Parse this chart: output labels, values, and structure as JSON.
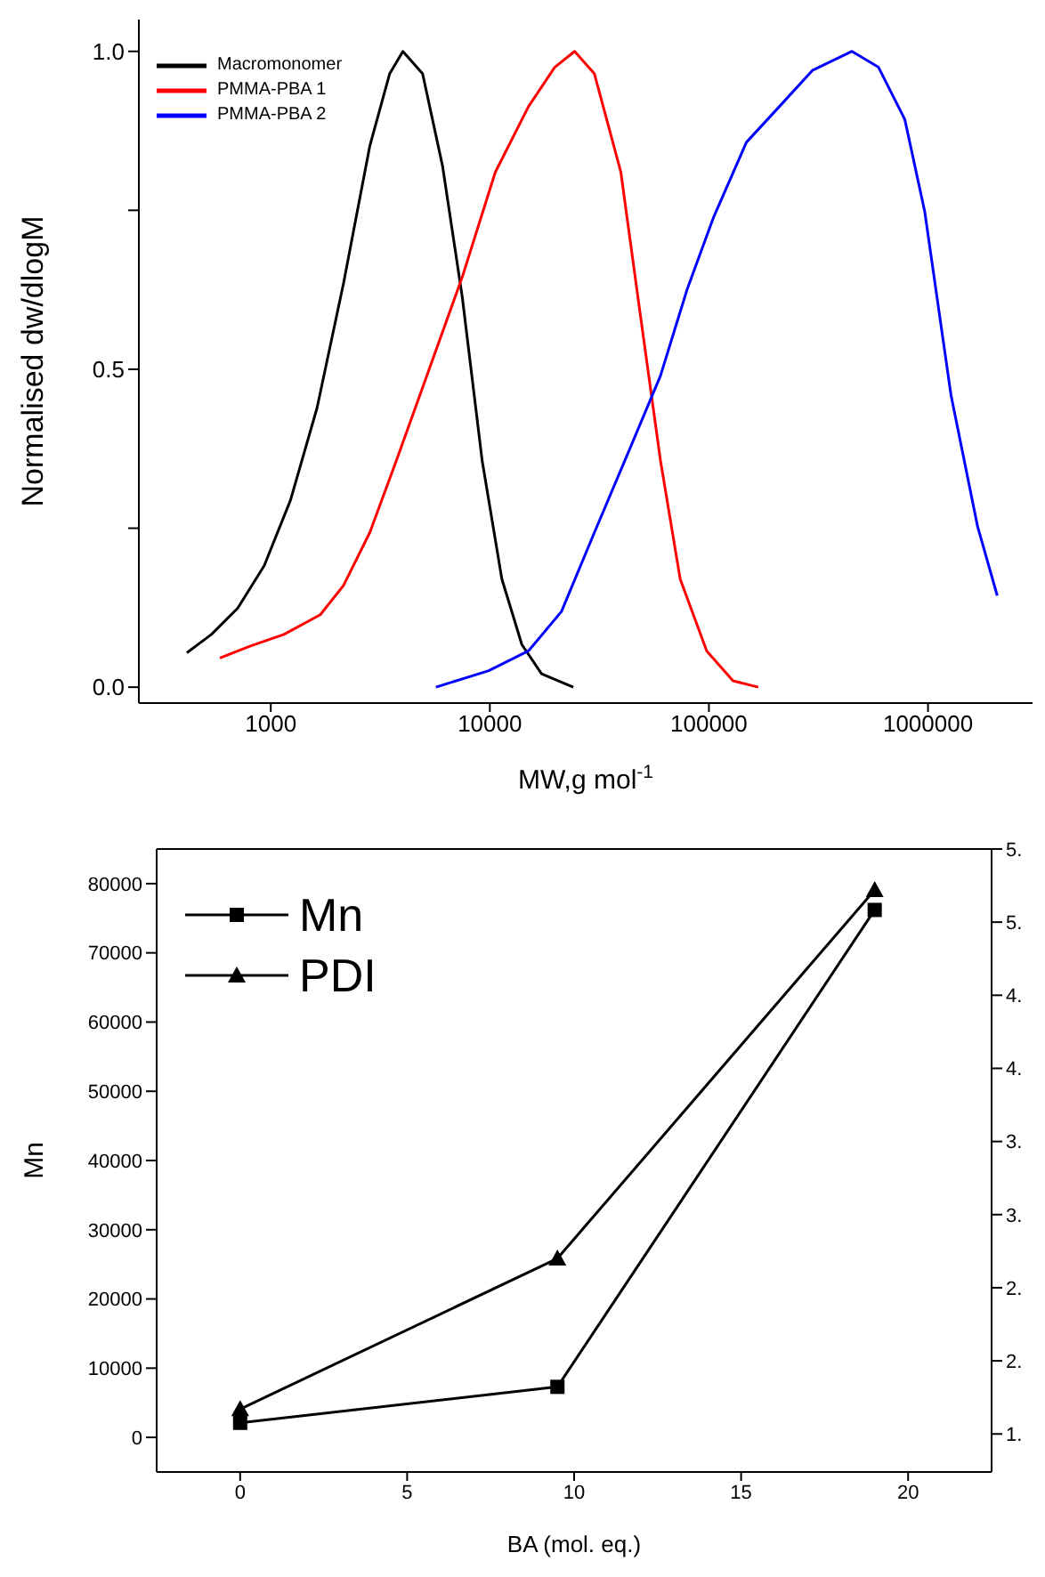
{
  "chart_data": [
    {
      "type": "line",
      "xlabel": "MW,g mol$^{-1}$",
      "ylabel": "Normalised dw/dlogM",
      "log": "x",
      "xlim": [
        250,
        3000000
      ],
      "xticks": [
        1000,
        10000,
        100000,
        1000000
      ],
      "ylim": [
        -0.025,
        1.05
      ],
      "yticks": [
        {
          "value": 0,
          "label": "0.0"
        },
        {
          "value": 0.25,
          "label": null
        },
        {
          "value": 0.5,
          "label": "0.5"
        },
        {
          "value": 0.75,
          "label": null
        },
        {
          "value": 1.0,
          "label": "1.0"
        }
      ],
      "legend": "top left",
      "marker": "none",
      "grid": false,
      "series": [
        {
          "name": "Macromonomer",
          "color": "#000000",
          "x": [
            414,
            536,
            706,
            933,
            1230,
            1626,
            2148,
            2831,
            3491,
            4009,
            4932,
            6081,
            7482,
            9226,
            11350,
            14000,
            17220,
            24040
          ],
          "values": [
            0.054,
            0.083,
            0.124,
            0.191,
            0.294,
            0.439,
            0.635,
            0.851,
            0.965,
            1.0,
            0.965,
            0.82,
            0.614,
            0.356,
            0.17,
            0.067,
            0.021,
            0.0
          ]
        },
        {
          "name": "PMMA-PBA 1",
          "color": "#ff0000",
          "x": [
            586,
            813,
            1148,
            1683,
            2148,
            2831,
            3741,
            5297,
            7482,
            10590,
            15000,
            19770,
            24380,
            29990,
            39630,
            48750,
            60120,
            73960,
            97720,
            128800,
            167900
          ],
          "values": [
            0.046,
            0.065,
            0.083,
            0.114,
            0.16,
            0.243,
            0.356,
            0.501,
            0.645,
            0.81,
            0.913,
            0.975,
            1.0,
            0.965,
            0.81,
            0.583,
            0.356,
            0.17,
            0.057,
            0.01,
            0.0
          ]
        },
        {
          "name": "PMMA-PBA 2",
          "color": "#0000ff",
          "x": [
            5675,
            9886,
            15000,
            21230,
            29990,
            42460,
            60120,
            79250,
            104700,
            148300,
            209400,
            296500,
            449800,
            594300,
            783400,
            966100,
            1274000,
            1683000,
            2070000
          ],
          "values": [
            0.0,
            0.026,
            0.057,
            0.119,
            0.243,
            0.366,
            0.49,
            0.624,
            0.738,
            0.857,
            0.913,
            0.97,
            1.0,
            0.975,
            0.893,
            0.748,
            0.459,
            0.253,
            0.144
          ]
        }
      ]
    },
    {
      "type": "line",
      "xlabel": "BA (mol. eq.)",
      "ylabel": "Mn",
      "xlim": [
        -2.5,
        22.5
      ],
      "xticks": [
        0,
        5,
        10,
        15,
        20
      ],
      "ylim": [
        -5000,
        85000
      ],
      "yticks": [
        0,
        10000,
        20000,
        30000,
        40000,
        50000,
        60000,
        70000,
        80000
      ],
      "y2lim": [
        1.24,
        5.5
      ],
      "y2ticks": [
        {
          "value": 1.5,
          "label": "1."
        },
        {
          "value": 2.0,
          "label": "2."
        },
        {
          "value": 2.5,
          "label": "2."
        },
        {
          "value": 3.0,
          "label": "3."
        },
        {
          "value": 3.5,
          "label": "3."
        },
        {
          "value": 4.0,
          "label": "4."
        },
        {
          "value": 4.5,
          "label": "4."
        },
        {
          "value": 5.0,
          "label": "5."
        },
        {
          "value": 5.5,
          "label": "5."
        }
      ],
      "legend": "top left",
      "grid": false,
      "x": [
        0,
        9.5,
        19
      ],
      "series": [
        {
          "name": "Mn",
          "color": "#000000",
          "marker": "square",
          "values": [
            2100,
            7300,
            76200
          ]
        },
        {
          "name": "PDI",
          "color": "#000000",
          "marker": "triangle",
          "axis": "y2",
          "values": [
            1.67,
            2.7,
            5.22
          ]
        }
      ]
    }
  ]
}
